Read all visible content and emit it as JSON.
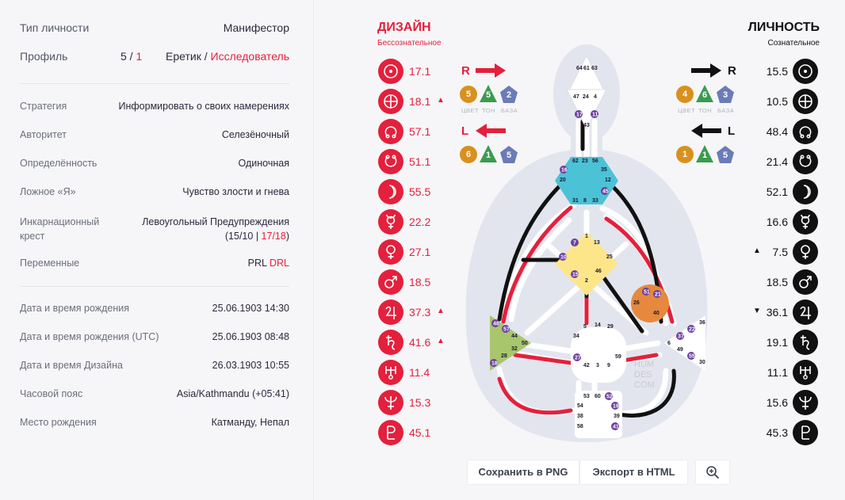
{
  "left": {
    "type": {
      "label": "Тип личности",
      "value": "Манифестор"
    },
    "profile": {
      "label": "Профиль",
      "num_a": "5",
      "num_sep": " / ",
      "num_b": "1",
      "name_a": "Еретик",
      "name_sep": " / ",
      "name_b": "Исследователь"
    },
    "strategy": {
      "label": "Стратегия",
      "value": "Информировать о своих намерениях"
    },
    "authority": {
      "label": "Авторитет",
      "value": "Селезёночный"
    },
    "definition": {
      "label": "Определённость",
      "value": "Одиночная"
    },
    "false_self": {
      "label": "Ложное «Я»",
      "value": "Чувство злости и гнева"
    },
    "cross": {
      "label_1": "Инкарнационный",
      "label_2": "крест",
      "value_1": "Левоугольный Предупреждения",
      "value_2a": "(15/10",
      "value_2sep": " | ",
      "value_2b": "17/18",
      "value_2c": ")"
    },
    "variables": {
      "label": "Переменные",
      "value_a": "PRL",
      "value_b": "DRL"
    },
    "birth": {
      "label": "Дата и время рождения",
      "value": "25.06.1903 14:30"
    },
    "birth_utc": {
      "label": "Дата и время рождения (UTC)",
      "value": "25.06.1903 08:48"
    },
    "design_date": {
      "label": "Дата и время Дизайна",
      "value": "26.03.1903 10:55"
    },
    "timezone": {
      "label": "Часовой пояс",
      "value": "Asia/Kathmandu (+05:41)"
    },
    "place": {
      "label": "Место рождения",
      "value": "Катманду, Непал"
    }
  },
  "design": {
    "title": "ДИЗАЙН",
    "subtitle": "Бессознательное",
    "planets": [
      {
        "icon": "sun-icon",
        "value": "17.1",
        "arrow": ""
      },
      {
        "icon": "earth-icon",
        "value": "18.1",
        "arrow": "▲"
      },
      {
        "icon": "north-node-icon",
        "value": "57.1",
        "arrow": ""
      },
      {
        "icon": "south-node-icon",
        "value": "51.1",
        "arrow": ""
      },
      {
        "icon": "moon-icon",
        "value": "55.5",
        "arrow": ""
      },
      {
        "icon": "mercury-icon",
        "value": "22.2",
        "arrow": ""
      },
      {
        "icon": "venus-icon",
        "value": "27.1",
        "arrow": ""
      },
      {
        "icon": "mars-icon",
        "value": "18.5",
        "arrow": ""
      },
      {
        "icon": "jupiter-icon",
        "value": "37.3",
        "arrow": "▲"
      },
      {
        "icon": "saturn-icon",
        "value": "41.6",
        "arrow": "▲"
      },
      {
        "icon": "uranus-icon",
        "value": "11.4",
        "arrow": ""
      },
      {
        "icon": "neptune-icon",
        "value": "15.3",
        "arrow": ""
      },
      {
        "icon": "pluto-icon",
        "value": "45.1",
        "arrow": ""
      }
    ]
  },
  "personality": {
    "title": "ЛИЧНОСТЬ",
    "subtitle": "Сознательное",
    "planets": [
      {
        "icon": "sun-icon",
        "value": "15.5",
        "arrow": ""
      },
      {
        "icon": "earth-icon",
        "value": "10.5",
        "arrow": ""
      },
      {
        "icon": "north-node-icon",
        "value": "48.4",
        "arrow": ""
      },
      {
        "icon": "south-node-icon",
        "value": "21.4",
        "arrow": ""
      },
      {
        "icon": "moon-icon",
        "value": "52.1",
        "arrow": ""
      },
      {
        "icon": "mercury-icon",
        "value": "16.6",
        "arrow": ""
      },
      {
        "icon": "venus-icon",
        "value": "7.5",
        "arrow": "▲"
      },
      {
        "icon": "mars-icon",
        "value": "18.5",
        "arrow": ""
      },
      {
        "icon": "jupiter-icon",
        "value": "36.1",
        "arrow": "▼"
      },
      {
        "icon": "saturn-icon",
        "value": "19.1",
        "arrow": ""
      },
      {
        "icon": "uranus-icon",
        "value": "11.1",
        "arrow": ""
      },
      {
        "icon": "neptune-icon",
        "value": "15.6",
        "arrow": ""
      },
      {
        "icon": "pluto-icon",
        "value": "45.3",
        "arrow": ""
      }
    ]
  },
  "vars": {
    "design_top": {
      "letter": "R",
      "color": "5",
      "tone": "5",
      "base": "2"
    },
    "design_bottom": {
      "letter": "L",
      "color": "6",
      "tone": "1",
      "base": "5"
    },
    "pers_top": {
      "letter": "R",
      "color": "4",
      "tone": "6",
      "base": "3"
    },
    "pers_bottom": {
      "letter": "L",
      "color": "1",
      "tone": "1",
      "base": "5"
    },
    "labels": {
      "color": "ЦВЕТ",
      "tone": "ТОН",
      "base": "БАЗА"
    }
  },
  "graph": {
    "watermark": [
      "HUM",
      "DES",
      "COM"
    ],
    "head_gates": [
      "64",
      "61",
      "63"
    ],
    "ajna_gates": [
      "47",
      "24",
      "4",
      "17",
      "11",
      "43"
    ],
    "throat_gates": [
      "62",
      "23",
      "56",
      "16",
      "35",
      "20",
      "12",
      "45",
      "31",
      "8",
      "33"
    ],
    "g_gates": [
      "1",
      "7",
      "13",
      "10",
      "25",
      "15",
      "46",
      "2"
    ],
    "ego_gates": [
      "51",
      "21",
      "26",
      "40"
    ],
    "spleen_gates": [
      "48",
      "57",
      "44",
      "50",
      "32",
      "28",
      "18"
    ],
    "sacral_gates": [
      "5",
      "14",
      "29",
      "34",
      "27",
      "59",
      "42",
      "3",
      "9"
    ],
    "sp_gates": [
      "36",
      "22",
      "37",
      "6",
      "49",
      "55",
      "30"
    ],
    "root_gates": [
      "53",
      "60",
      "52",
      "54",
      "19",
      "38",
      "39",
      "58",
      "41"
    ]
  },
  "buttons": {
    "save_png": "Сохранить в PNG",
    "export_html": "Экспорт в HTML"
  },
  "colors": {
    "design": "#e4203c",
    "personality": "#111111",
    "throat": "#4cc2d7",
    "g": "#fde68a",
    "ego": "#e6893f",
    "spleen": "#a8c66c"
  }
}
